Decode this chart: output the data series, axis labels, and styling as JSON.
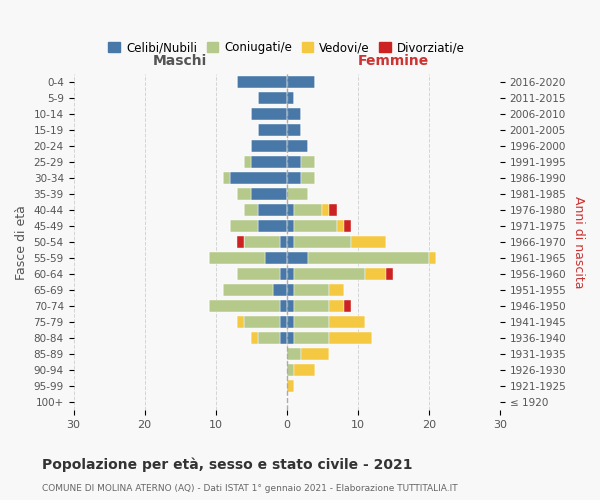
{
  "age_groups": [
    "100+",
    "95-99",
    "90-94",
    "85-89",
    "80-84",
    "75-79",
    "70-74",
    "65-69",
    "60-64",
    "55-59",
    "50-54",
    "45-49",
    "40-44",
    "35-39",
    "30-34",
    "25-29",
    "20-24",
    "15-19",
    "10-14",
    "5-9",
    "0-4"
  ],
  "birth_years": [
    "≤ 1920",
    "1921-1925",
    "1926-1930",
    "1931-1935",
    "1936-1940",
    "1941-1945",
    "1946-1950",
    "1951-1955",
    "1956-1960",
    "1961-1965",
    "1966-1970",
    "1971-1975",
    "1976-1980",
    "1981-1985",
    "1986-1990",
    "1991-1995",
    "1996-2000",
    "2001-2005",
    "2006-2010",
    "2011-2015",
    "2016-2020"
  ],
  "colors": {
    "celibi": "#4878a8",
    "coniugati": "#b5c98a",
    "vedovi": "#f5c842",
    "divorziati": "#cc2222"
  },
  "males": {
    "celibi": [
      0,
      0,
      0,
      0,
      1,
      1,
      1,
      2,
      1,
      3,
      1,
      4,
      4,
      5,
      8,
      5,
      5,
      4,
      5,
      4,
      7
    ],
    "coniugati": [
      0,
      0,
      0,
      0,
      3,
      5,
      10,
      7,
      6,
      8,
      5,
      4,
      2,
      2,
      1,
      1,
      0,
      0,
      0,
      0,
      0
    ],
    "vedovi": [
      0,
      0,
      0,
      0,
      1,
      1,
      0,
      0,
      0,
      0,
      0,
      0,
      0,
      0,
      0,
      0,
      0,
      0,
      0,
      0,
      0
    ],
    "divorziati": [
      0,
      0,
      0,
      0,
      0,
      0,
      0,
      0,
      0,
      0,
      1,
      0,
      0,
      0,
      0,
      0,
      0,
      0,
      0,
      0,
      0
    ]
  },
  "females": {
    "celibi": [
      0,
      0,
      0,
      0,
      1,
      1,
      1,
      1,
      1,
      3,
      1,
      1,
      1,
      0,
      2,
      2,
      3,
      2,
      2,
      1,
      4
    ],
    "coniugati": [
      0,
      0,
      1,
      2,
      5,
      5,
      5,
      5,
      10,
      17,
      8,
      6,
      4,
      3,
      2,
      2,
      0,
      0,
      0,
      0,
      0
    ],
    "vedovi": [
      0,
      1,
      3,
      4,
      6,
      5,
      2,
      2,
      3,
      1,
      5,
      1,
      1,
      0,
      0,
      0,
      0,
      0,
      0,
      0,
      0
    ],
    "divorziati": [
      0,
      0,
      0,
      0,
      0,
      0,
      1,
      0,
      1,
      0,
      0,
      1,
      1,
      0,
      0,
      0,
      0,
      0,
      0,
      0,
      0
    ]
  },
  "xlim": 30,
  "title": "Popolazione per età, sesso e stato civile - 2021",
  "subtitle": "COMUNE DI MOLINA ATERNO (AQ) - Dati ISTAT 1° gennaio 2021 - Elaborazione TUTTITALIA.IT",
  "xlabel_left": "Maschi",
  "xlabel_right": "Femmine",
  "ylabel_left": "Fasce di età",
  "ylabel_right": "Anni di nascita",
  "legend_labels": [
    "Celibi/Nubili",
    "Coniugati/e",
    "Vedovi/e",
    "Divorziati/e"
  ],
  "bg_color": "#f8f8f8",
  "grid_color": "#cccccc"
}
